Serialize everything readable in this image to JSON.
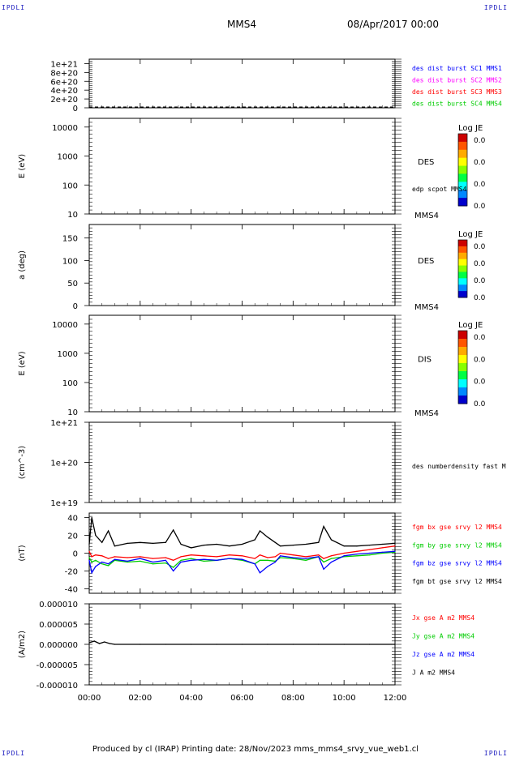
{
  "corner_tl": "IPDLI",
  "corner_tr": "IPDLI",
  "corner_bl": "IPDLI",
  "corner_br": "IPDLI",
  "header": {
    "spacecraft": "MMS4",
    "date": "08/Apr/2017 00:00"
  },
  "footer": "Produced by cl (IRAP)   Printing date: 28/Nov/2023   mms_mms4_srvy_vue_web1.cl",
  "colors": {
    "black": "#000000",
    "blue": "#0000ff",
    "magenta": "#ff00ff",
    "red": "#ff0000",
    "green": "#00cc00"
  },
  "chart_data": [
    {
      "type": "line",
      "ylabel": "",
      "ylim": [
        0,
        1.1e+21
      ],
      "yticks": [
        "1e+21",
        "8e+20",
        "6e+20",
        "4e+20",
        "2e+20",
        "0"
      ],
      "legend": [
        {
          "name": "des dist burst SC1 MMS1",
          "color": "#0000ff"
        },
        {
          "name": "des dist burst SC2 MMS2",
          "color": "#ff00ff"
        },
        {
          "name": "des dist burst SC3 MMS3",
          "color": "#ff0000"
        },
        {
          "name": "des dist burst SC4 MMS4",
          "color": "#00cc00"
        }
      ],
      "series": [
        {
          "values": [
            0,
            0
          ]
        }
      ]
    },
    {
      "type": "heatmap",
      "ylabel": "E (eV)",
      "scale": "log",
      "ylim": [
        10,
        20000
      ],
      "yticks": [
        "10000",
        "1000",
        "100",
        "10"
      ],
      "instrument": "DES",
      "side_label": "edp scpot MMS4",
      "spacecraft": "MMS4",
      "colorbar": {
        "title": "Log JE",
        "ticks": [
          "0.0",
          "0.0",
          "0.0",
          "0.0"
        ]
      }
    },
    {
      "type": "heatmap",
      "ylabel": "a (deg)",
      "ylim": [
        0,
        180
      ],
      "yticks": [
        "150",
        "100",
        "50",
        "0"
      ],
      "instrument": "DES",
      "spacecraft": "MMS4",
      "colorbar": {
        "title": "Log JE",
        "ticks": [
          "0.0",
          "0.0",
          "0.0",
          "0.0"
        ]
      }
    },
    {
      "type": "heatmap",
      "ylabel": "E (eV)",
      "scale": "log",
      "ylim": [
        10,
        20000
      ],
      "yticks": [
        "10000",
        "1000",
        "100",
        "10"
      ],
      "instrument": "DIS",
      "spacecraft": "MMS4",
      "colorbar": {
        "title": "Log JE",
        "ticks": [
          "0.0",
          "0.0",
          "0.0",
          "0.0"
        ]
      }
    },
    {
      "type": "line",
      "ylabel": "(cm^-3)",
      "scale": "log",
      "ylim": [
        1e+19,
        1e+21
      ],
      "yticks": [
        "1e+21",
        "1e+20",
        "1e+19"
      ],
      "legend": [
        {
          "name": "des numberdensity fast M",
          "color": "#000000"
        }
      ],
      "series": []
    },
    {
      "type": "line",
      "ylabel": "(nT)",
      "ylim": [
        -45,
        45
      ],
      "yticks": [
        "40",
        "20",
        "0",
        "-20",
        "-40"
      ],
      "x_hours": [
        0,
        0.1,
        0.25,
        0.5,
        0.75,
        1,
        1.5,
        2,
        2.5,
        3,
        3.3,
        3.6,
        4,
        4.5,
        5,
        5.5,
        6,
        6.5,
        6.7,
        7,
        7.3,
        7.5,
        8,
        8.5,
        9,
        9.2,
        9.5,
        10,
        10.5,
        11,
        11.5,
        12
      ],
      "legend": [
        {
          "name": "fgm bx gse srvy l2 MMS4",
          "color": "#ff0000"
        },
        {
          "name": "fgm by gse srvy l2 MMS4",
          "color": "#00cc00"
        },
        {
          "name": "fgm bz gse srvy l2 MMS4",
          "color": "#0000ff"
        },
        {
          "name": "fgm bt gse srvy l2 MMS4",
          "color": "#000000"
        }
      ],
      "series": [
        {
          "name": "fgm bx gse srvy l2 MMS4",
          "color": "#ff0000",
          "values": [
            2,
            -4,
            -2,
            -3,
            -6,
            -4,
            -5,
            -4,
            -6,
            -5,
            -8,
            -4,
            -2,
            -3,
            -4,
            -2,
            -3,
            -6,
            -2,
            -5,
            -4,
            0,
            -2,
            -4,
            -2,
            -6,
            -3,
            0,
            2,
            4,
            6,
            8
          ]
        },
        {
          "name": "fgm by gse srvy l2 MMS4",
          "color": "#00cc00",
          "values": [
            -5,
            -10,
            -8,
            -12,
            -14,
            -8,
            -10,
            -9,
            -12,
            -11,
            -16,
            -8,
            -6,
            -9,
            -8,
            -6,
            -8,
            -12,
            -8,
            -8,
            -9,
            -5,
            -6,
            -8,
            -4,
            -10,
            -6,
            -4,
            -3,
            -2,
            0,
            1
          ]
        },
        {
          "name": "fgm bz gse srvy l2 MMS4",
          "color": "#0000ff",
          "values": [
            -8,
            -22,
            -15,
            -10,
            -12,
            -7,
            -9,
            -6,
            -10,
            -8,
            -20,
            -10,
            -8,
            -7,
            -8,
            -6,
            -7,
            -12,
            -22,
            -15,
            -10,
            -3,
            -5,
            -6,
            -4,
            -18,
            -10,
            -3,
            -1,
            0,
            1,
            2
          ]
        },
        {
          "name": "fgm bt gse srvy l2 MMS4",
          "color": "#000000",
          "values": [
            10,
            40,
            20,
            12,
            25,
            8,
            11,
            12,
            11,
            12,
            26,
            10,
            6,
            9,
            10,
            8,
            10,
            15,
            25,
            18,
            12,
            8,
            9,
            10,
            12,
            30,
            15,
            8,
            8,
            9,
            10,
            11
          ]
        }
      ]
    },
    {
      "type": "line",
      "ylabel": "(A/m2)",
      "ylim": [
        -1e-05,
        1e-05
      ],
      "yticks": [
        "0.000010",
        "0.000005",
        "0.000000",
        "-0.000005",
        "-0.000010"
      ],
      "legend": [
        {
          "name": "Jx gse A m2 MMS4",
          "color": "#ff0000"
        },
        {
          "name": "Jy gse A m2 MMS4",
          "color": "#00cc00"
        },
        {
          "name": "Jz gse A m2 MMS4",
          "color": "#0000ff"
        },
        {
          "name": "J A m2 MMS4",
          "color": "#000000"
        }
      ],
      "x_hours": [
        0,
        0.2,
        0.4,
        0.6,
        0.8,
        1,
        2,
        3,
        4,
        5,
        6,
        7,
        8,
        9,
        10,
        11,
        12
      ],
      "series": [
        {
          "name": "J A m2 MMS4",
          "color": "#000000",
          "values": [
            4e-07,
            8e-07,
            2e-07,
            6e-07,
            2e-07,
            0,
            0,
            0,
            0,
            0,
            0,
            0,
            0,
            0,
            0,
            0,
            0
          ]
        }
      ]
    }
  ],
  "xaxis": {
    "ticks": [
      "00:00",
      "02:00",
      "04:00",
      "06:00",
      "08:00",
      "10:00",
      "12:00"
    ],
    "range_hours": [
      0,
      12
    ]
  }
}
